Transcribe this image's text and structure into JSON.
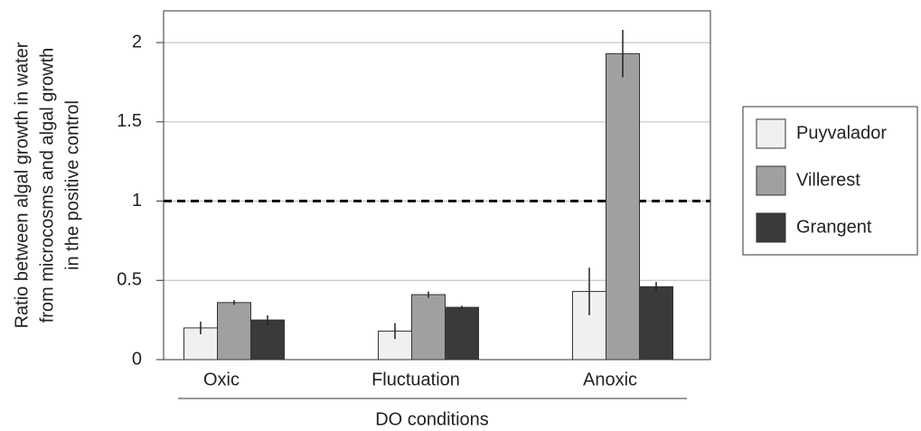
{
  "chart_data": {
    "type": "bar",
    "y_label": [
      "Ratio between algal growth in water",
      "from microcosms and algal growth",
      "in the positive control"
    ],
    "x_label": "DO conditions",
    "categories": [
      "Oxic",
      "Fluctuation",
      "Anoxic"
    ],
    "series": [
      {
        "name": "Puyvalador",
        "color": "#f0f0f0",
        "values": [
          0.2,
          0.18,
          0.43
        ],
        "errors": [
          0.04,
          0.05,
          0.15
        ]
      },
      {
        "name": "Villerest",
        "color": "#a0a0a2",
        "values": [
          0.36,
          0.41,
          1.93
        ],
        "errors": [
          0.015,
          0.02,
          0.15
        ]
      },
      {
        "name": "Grangent",
        "color": "#3a3a3c",
        "values": [
          0.25,
          0.33,
          0.46
        ],
        "errors": [
          0.03,
          0.01,
          0.03
        ]
      }
    ],
    "reference_line": 1,
    "ylim": [
      0,
      2.2
    ],
    "yticks": [
      0,
      0.5,
      1,
      1.5,
      2
    ],
    "grid": true,
    "legend": "right"
  }
}
